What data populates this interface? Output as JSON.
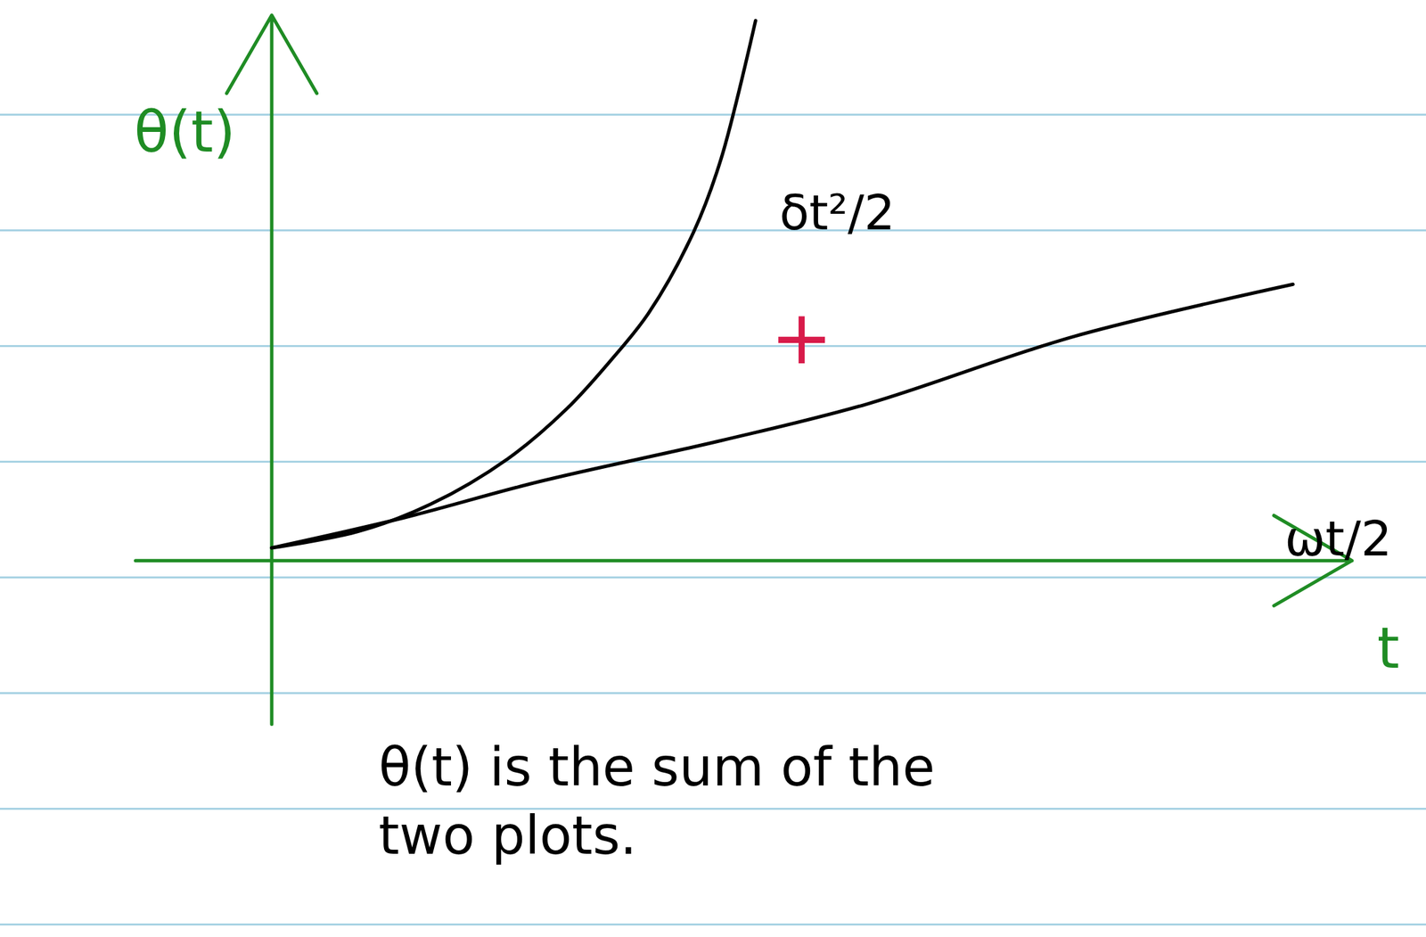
{
  "chart_data": {
    "type": "line",
    "x_label": "t",
    "y_label": "θ(t)",
    "caption": "θ(t) is the sum of the two plots.",
    "annotations": [
      {
        "text": "+"
      }
    ],
    "series": [
      {
        "name": "δt²/2",
        "color": "#000000",
        "x": [
          0,
          0.95,
          1.75,
          2.6,
          3.25,
          3.75,
          4.15,
          4.65,
          4.95,
          5.33
        ],
        "values": [
          0.14,
          0.32,
          0.62,
          1.12,
          1.67,
          2.22,
          2.72,
          3.62,
          4.42,
          5.94
        ]
      },
      {
        "name": "ωt/2",
        "color": "#000000",
        "x": [
          0,
          1.45,
          2.95,
          4.95,
          6.55,
          8.85,
          11.25
        ],
        "values": [
          0.14,
          0.47,
          0.87,
          1.32,
          1.72,
          2.47,
          3.04
        ]
      }
    ],
    "xlim": [
      -1.5,
      11.9
    ],
    "ylim": [
      -1.8,
      6.0
    ],
    "xticks": [],
    "yticks": [],
    "tick_labels": false,
    "grid": false
  }
}
